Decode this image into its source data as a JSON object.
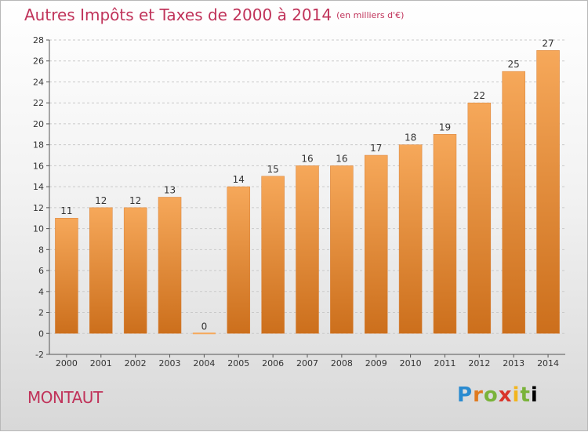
{
  "header": {
    "title": "Autres Impôts et Taxes de 2000 à 2014",
    "unit": "(en milliers d'€)"
  },
  "footer": {
    "commune": "MONTAUT",
    "brand_letters": [
      "P",
      "r",
      "o",
      "x",
      "i",
      "t",
      "i"
    ]
  },
  "colors": {
    "title": "#c0335a",
    "bar_top": "#f6a85a",
    "bar_bottom": "#cc6f1c"
  },
  "chart_data": {
    "type": "bar",
    "title": "Autres Impôts et Taxes de 2000 à 2014",
    "subtitle": "(en milliers d'€)",
    "categories": [
      "2000",
      "2001",
      "2002",
      "2003",
      "2004",
      "2005",
      "2006",
      "2007",
      "2008",
      "2009",
      "2010",
      "2011",
      "2012",
      "2013",
      "2014"
    ],
    "values": [
      11,
      12,
      12,
      13,
      0,
      14,
      15,
      16,
      16,
      17,
      18,
      19,
      22,
      25,
      27
    ],
    "data_labels": [
      "11",
      "12",
      "12",
      "13",
      "0",
      "14",
      "15",
      "16",
      "16",
      "17",
      "18",
      "19",
      "22",
      "25",
      "27"
    ],
    "ylim": [
      -2,
      28
    ],
    "yticks": [
      -2,
      0,
      2,
      4,
      6,
      8,
      10,
      12,
      14,
      16,
      18,
      20,
      22,
      24,
      26,
      28
    ],
    "grid": true
  }
}
